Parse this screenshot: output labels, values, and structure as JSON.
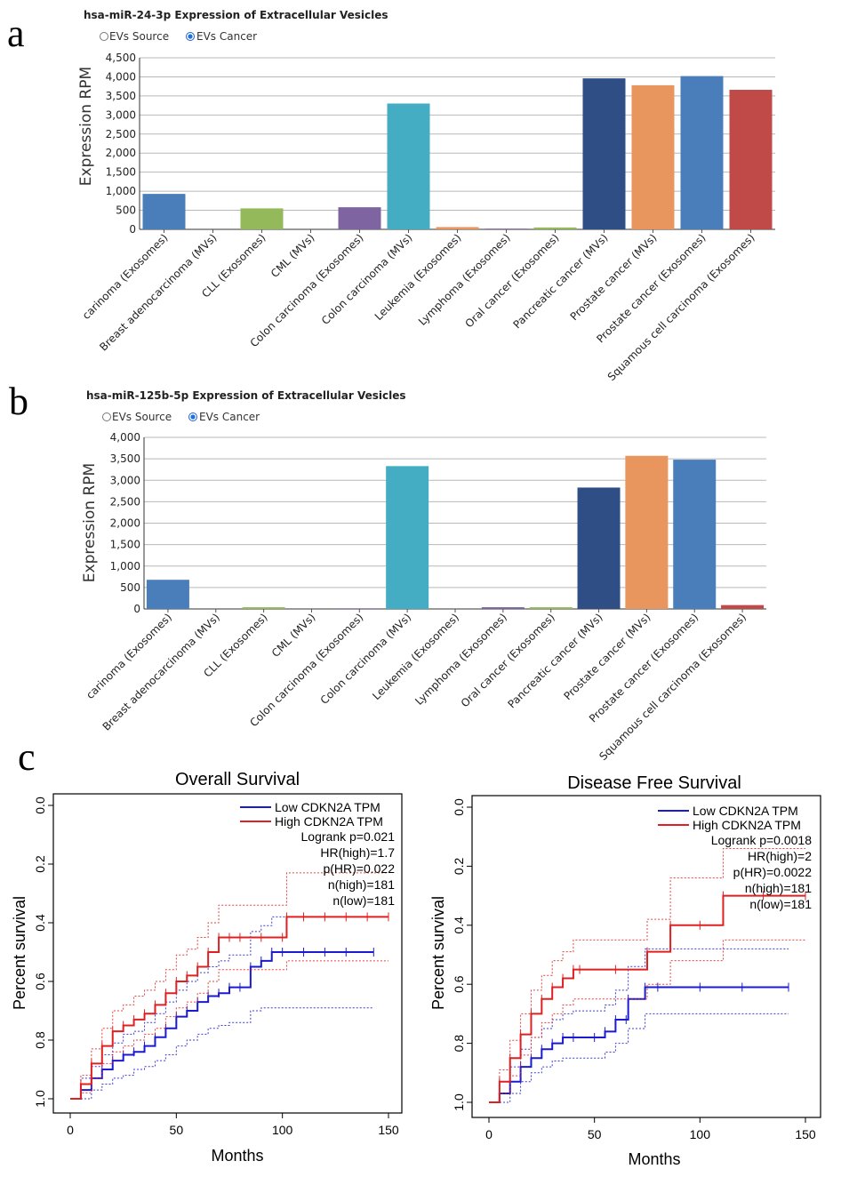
{
  "panels": {
    "a": "a",
    "b": "b",
    "c": "c"
  },
  "chart_data": [
    {
      "type": "bar",
      "title": "hsa-miR-24-3p Expression of Extracellular Vesicles",
      "radio_options": [
        {
          "label": "EVs Source",
          "selected": false
        },
        {
          "label": "EVs Cancer",
          "selected": true
        }
      ],
      "ylabel": "Expression RPM",
      "ylim": [
        0,
        4500
      ],
      "yticks": [
        "0",
        "500",
        "1,000",
        "1,500",
        "2,000",
        "2,500",
        "3,000",
        "3,500",
        "4,000",
        "4,500"
      ],
      "grid": true,
      "categories": [
        "carinoma (Exosomes)",
        "Breast adenocarcinoma (MVs)",
        "CLL (Exosomes)",
        "CML (MVs)",
        "Colon carcinoma (Exosomes)",
        "Colon carcinoma (MVs)",
        "Leukemia (Exosomes)",
        "Lymphoma (Exosomes)",
        "Oral cancer (Exosomes)",
        "Pancreatic cancer (MVs)",
        "Prostate cancer (MVs)",
        "Prostate cancer (Exosomes)",
        "Squamous cell carcinoma (Exosomes)"
      ],
      "values": [
        930,
        0,
        550,
        0,
        580,
        3300,
        60,
        20,
        50,
        3960,
        3780,
        4020,
        3660
      ],
      "colors": [
        "#4a7ebb",
        "#4a7ebb",
        "#93b95a",
        "#7e64a0",
        "#7e64a0",
        "#44adc4",
        "#e8965e",
        "#7e64a0",
        "#93b95a",
        "#2e4e85",
        "#e8965e",
        "#4a7ebb",
        "#bf4a47"
      ]
    },
    {
      "type": "bar",
      "title": "hsa-miR-125b-5p Expression of Extracellular Vesicles",
      "radio_options": [
        {
          "label": "EVs Source",
          "selected": false
        },
        {
          "label": "EVs Cancer",
          "selected": true
        }
      ],
      "ylabel": "Expression RPM",
      "ylim": [
        0,
        4000
      ],
      "yticks": [
        "0",
        "500",
        "1,000",
        "1,500",
        "2,000",
        "2,500",
        "3,000",
        "3,500",
        "4,000"
      ],
      "grid": true,
      "categories": [
        "carinoma (Exosomes)",
        "Breast adenocarcinoma (MVs)",
        "CLL (Exosomes)",
        "CML (MVs)",
        "Colon carcinoma (Exosomes)",
        "Colon carcinoma (MVs)",
        "Leukemia (Exosomes)",
        "Lymphoma (Exosomes)",
        "Oral cancer (Exosomes)",
        "Pancreatic cancer (MVs)",
        "Prostate cancer (MVs)",
        "Prostate cancer (Exosomes)",
        "Squamous cell carcinoma (Exosomes)"
      ],
      "values": [
        680,
        0,
        40,
        0,
        15,
        3330,
        0,
        40,
        40,
        2830,
        3570,
        3480,
        90
      ],
      "colors": [
        "#4a7ebb",
        "#4a7ebb",
        "#93b95a",
        "#7e64a0",
        "#7e64a0",
        "#44adc4",
        "#e8965e",
        "#7e64a0",
        "#93b95a",
        "#2e4e85",
        "#e8965e",
        "#4a7ebb",
        "#bf4a47"
      ]
    },
    {
      "type": "line",
      "title": "Overall Survival",
      "xlabel": "Months",
      "ylabel": "Percent survival",
      "xlim": [
        0,
        150
      ],
      "ylim": [
        0,
        1
      ],
      "xticks": [
        "0",
        "50",
        "100",
        "150"
      ],
      "yticks": [
        "0.0",
        "0.2",
        "0.4",
        "0.6",
        "0.8",
        "1.0"
      ],
      "legend_position": "top-right",
      "stats": [
        "Logrank p=0.021",
        "HR(high)=1.7",
        "p(HR)=0.022",
        "n(high)=181",
        "n(low)=181"
      ],
      "series": [
        {
          "name": "Low CDKN2A TPM",
          "color": "#1a1ad0",
          "x": [
            0,
            5,
            10,
            15,
            20,
            25,
            30,
            35,
            40,
            45,
            50,
            55,
            60,
            65,
            70,
            75,
            80,
            85,
            90,
            95,
            100,
            110,
            120,
            130,
            143
          ],
          "y": [
            1.0,
            0.97,
            0.93,
            0.9,
            0.87,
            0.85,
            0.84,
            0.82,
            0.79,
            0.76,
            0.72,
            0.7,
            0.67,
            0.65,
            0.64,
            0.62,
            0.62,
            0.55,
            0.53,
            0.5,
            0.5,
            0.5,
            0.5,
            0.5,
            0.5
          ],
          "upper": [
            1.0,
            1.0,
            0.97,
            0.95,
            0.93,
            0.92,
            0.9,
            0.89,
            0.87,
            0.85,
            0.82,
            0.8,
            0.78,
            0.76,
            0.75,
            0.74,
            0.74,
            0.7,
            0.69,
            0.69,
            0.69,
            0.69,
            0.69,
            0.69,
            0.69
          ],
          "lower": [
            1.0,
            0.93,
            0.89,
            0.85,
            0.81,
            0.78,
            0.77,
            0.74,
            0.71,
            0.67,
            0.63,
            0.6,
            0.57,
            0.55,
            0.53,
            0.51,
            0.51,
            0.43,
            0.41,
            0.38,
            0.38,
            0.38,
            0.38,
            0.38,
            0.38
          ]
        },
        {
          "name": "High CDKN2A TPM",
          "color": "#e02020",
          "x": [
            0,
            5,
            10,
            15,
            20,
            25,
            30,
            35,
            40,
            45,
            50,
            55,
            60,
            65,
            70,
            75,
            80,
            90,
            100,
            102,
            110,
            120,
            130,
            140,
            150
          ],
          "y": [
            1.0,
            0.95,
            0.88,
            0.82,
            0.77,
            0.75,
            0.73,
            0.71,
            0.68,
            0.64,
            0.6,
            0.58,
            0.55,
            0.5,
            0.45,
            0.45,
            0.45,
            0.45,
            0.45,
            0.38,
            0.38,
            0.38,
            0.38,
            0.38,
            0.38
          ],
          "upper": [
            1.0,
            0.98,
            0.93,
            0.88,
            0.84,
            0.82,
            0.8,
            0.78,
            0.76,
            0.72,
            0.69,
            0.67,
            0.64,
            0.6,
            0.56,
            0.56,
            0.56,
            0.56,
            0.56,
            0.53,
            0.53,
            0.53,
            0.53,
            0.53,
            0.53
          ],
          "lower": [
            1.0,
            0.92,
            0.83,
            0.76,
            0.7,
            0.68,
            0.65,
            0.63,
            0.6,
            0.56,
            0.51,
            0.49,
            0.45,
            0.4,
            0.34,
            0.34,
            0.34,
            0.34,
            0.34,
            0.23,
            0.23,
            0.23,
            0.23,
            0.23,
            0.23
          ]
        }
      ]
    },
    {
      "type": "line",
      "title": "Disease Free Survival",
      "xlabel": "Months",
      "ylabel": "Percent survival",
      "xlim": [
        0,
        150
      ],
      "ylim": [
        0,
        1
      ],
      "xticks": [
        "0",
        "50",
        "100",
        "150"
      ],
      "yticks": [
        "0.0",
        "0.2",
        "0.4",
        "0.6",
        "0.8",
        "1.0"
      ],
      "legend_position": "top-right",
      "stats": [
        "Logrank p=0.0018",
        "HR(high)=2",
        "p(HR)=0.0022",
        "n(high)=181",
        "n(low)=181"
      ],
      "series": [
        {
          "name": "Low CDKN2A TPM",
          "color": "#1a1ad0",
          "x": [
            0,
            5,
            10,
            15,
            20,
            25,
            30,
            35,
            40,
            50,
            55,
            60,
            65,
            66,
            74,
            80,
            100,
            120,
            142
          ],
          "y": [
            1.0,
            0.97,
            0.93,
            0.88,
            0.85,
            0.82,
            0.8,
            0.78,
            0.78,
            0.78,
            0.76,
            0.72,
            0.72,
            0.65,
            0.61,
            0.61,
            0.61,
            0.61,
            0.61
          ],
          "upper": [
            1.0,
            1.0,
            0.97,
            0.93,
            0.9,
            0.88,
            0.86,
            0.85,
            0.85,
            0.85,
            0.83,
            0.8,
            0.8,
            0.75,
            0.7,
            0.7,
            0.7,
            0.7,
            0.7
          ],
          "lower": [
            1.0,
            0.93,
            0.88,
            0.82,
            0.78,
            0.75,
            0.72,
            0.7,
            0.69,
            0.69,
            0.67,
            0.62,
            0.62,
            0.54,
            0.48,
            0.48,
            0.48,
            0.48,
            0.48
          ]
        },
        {
          "name": "High CDKN2A TPM",
          "color": "#e02020",
          "x": [
            0,
            5,
            10,
            15,
            20,
            25,
            30,
            35,
            40,
            43,
            60,
            75,
            86,
            100,
            111,
            130,
            150
          ],
          "y": [
            1.0,
            0.93,
            0.85,
            0.77,
            0.7,
            0.65,
            0.61,
            0.58,
            0.55,
            0.55,
            0.55,
            0.49,
            0.4,
            0.4,
            0.3,
            0.3,
            0.3
          ],
          "upper": [
            1.0,
            0.97,
            0.91,
            0.84,
            0.78,
            0.73,
            0.7,
            0.67,
            0.65,
            0.65,
            0.65,
            0.6,
            0.52,
            0.52,
            0.45,
            0.45,
            0.45
          ],
          "lower": [
            1.0,
            0.89,
            0.79,
            0.7,
            0.62,
            0.57,
            0.52,
            0.49,
            0.45,
            0.45,
            0.45,
            0.38,
            0.24,
            0.24,
            0.14,
            0.14,
            0.14
          ]
        }
      ]
    }
  ]
}
